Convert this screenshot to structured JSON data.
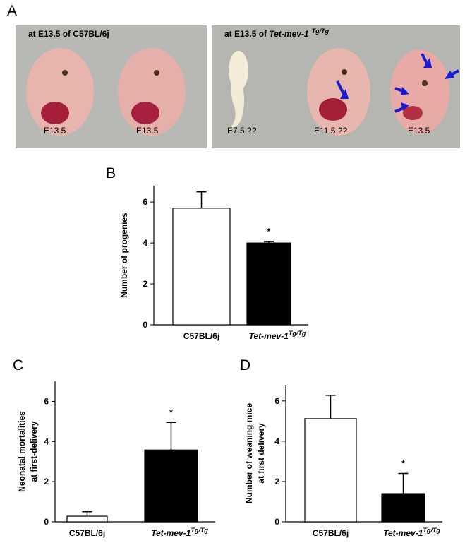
{
  "figure": {
    "panel_label": "A",
    "left_title": "at E13.5 of C57BL/6j",
    "right_title": {
      "prefix": "at E13.5 of ",
      "strain": "Tet-mev-1",
      "superscript": "Tg/Tg"
    },
    "embryo_labels": [
      "E13.5",
      "E13.5",
      "E7.5 ??",
      "E11.5 ??",
      "E13.5"
    ]
  },
  "chart_data": [
    {
      "type": "bar",
      "panel_label": "B",
      "ylabel": [
        "Number of progenies"
      ],
      "categories": [
        "C57BL/6j",
        "Tet-mev-1"
      ],
      "superscripts": {
        "1": "Tg/Tg"
      },
      "values": [
        5.7,
        4.0
      ],
      "errors": [
        0.8,
        0.07
      ],
      "colors": [
        "#ffffff",
        "#000000"
      ],
      "annotations": {
        "1": "*"
      },
      "ylim": [
        0,
        6.8
      ],
      "yticks": [
        0,
        2,
        4,
        6
      ]
    },
    {
      "type": "bar",
      "panel_label": "C",
      "ylabel": [
        "Neonatal mortalities",
        "at first-delivery"
      ],
      "categories": [
        "C57BL/6j",
        "Tet-mev-1"
      ],
      "superscripts": {
        "1": "Tg/Tg"
      },
      "values": [
        0.28,
        3.58
      ],
      "errors": [
        0.22,
        1.37
      ],
      "colors": [
        "#ffffff",
        "#000000"
      ],
      "annotations": {
        "1": "*"
      },
      "ylim": [
        0,
        7.0
      ],
      "yticks": [
        0,
        2,
        4,
        6
      ]
    },
    {
      "type": "bar",
      "panel_label": "D",
      "ylabel": [
        "Number of weaning mice",
        "at first delivery"
      ],
      "categories": [
        "C57BL/6j",
        "Tet-mev-1"
      ],
      "superscripts": {
        "1": "Tg/Tg"
      },
      "values": [
        5.12,
        1.4
      ],
      "errors": [
        1.16,
        1.0
      ],
      "colors": [
        "#ffffff",
        "#000000"
      ],
      "annotations": {
        "1": "*"
      },
      "ylim": [
        0,
        6.8
      ],
      "yticks": [
        0,
        2,
        4,
        6
      ]
    }
  ]
}
